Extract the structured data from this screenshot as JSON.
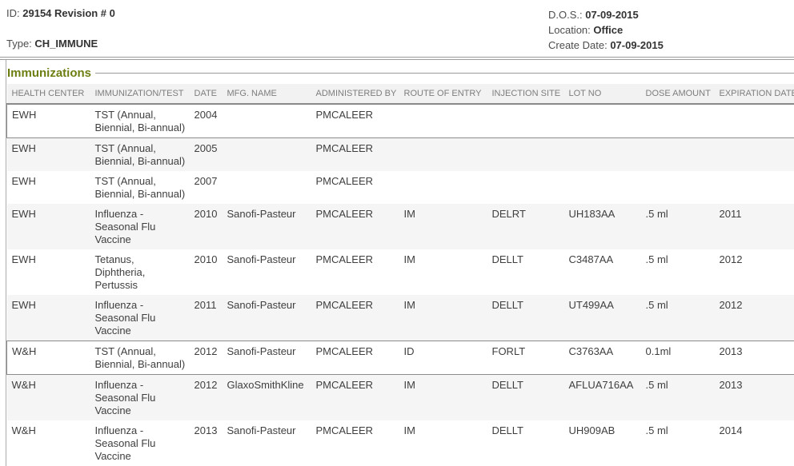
{
  "header": {
    "id_label": "ID:",
    "id_value": "29154 Revision # 0",
    "type_label": "Type:",
    "type_value": "CH_IMMUNE",
    "dos_label": "D.O.S.:",
    "dos_value": "07-09-2015",
    "location_label": "Location:",
    "location_value": "Office",
    "create_date_label": "Create Date:",
    "create_date_value": "07-09-2015"
  },
  "section": {
    "title": "Immunizations"
  },
  "table": {
    "columns": [
      "HEALTH CENTER",
      "IMMUNIZATION/TEST",
      "DATE",
      "MFG. NAME",
      "ADMINISTERED BY",
      "ROUTE OF ENTRY",
      "INJECTION SITE",
      "LOT NO",
      "DOSE AMOUNT",
      "EXPIRATION DATE"
    ],
    "rows": [
      {
        "outlined": true,
        "cells": [
          "EWH",
          "TST (Annual, Biennial, Bi-annual)",
          "2004",
          "",
          "PMCALEER",
          "",
          "",
          "",
          "",
          ""
        ]
      },
      {
        "outlined": false,
        "cells": [
          "EWH",
          "TST (Annual, Biennial, Bi-annual)",
          "2005",
          "",
          "PMCALEER",
          "",
          "",
          "",
          "",
          ""
        ]
      },
      {
        "outlined": false,
        "cells": [
          "EWH",
          "TST (Annual, Biennial, Bi-annual)",
          "2007",
          "",
          "PMCALEER",
          "",
          "",
          "",
          "",
          ""
        ]
      },
      {
        "outlined": false,
        "cells": [
          "EWH",
          "Influenza - Seasonal Flu Vaccine",
          "2010",
          "Sanofi-Pasteur",
          "PMCALEER",
          "IM",
          "DELRT",
          "UH183AA",
          ".5 ml",
          "2011"
        ]
      },
      {
        "outlined": false,
        "cells": [
          "EWH",
          "Tetanus, Diphtheria, Pertussis",
          "2010",
          "Sanofi-Pasteur",
          "PMCALEER",
          "IM",
          "DELLT",
          "C3487AA",
          ".5 ml",
          "2012"
        ]
      },
      {
        "outlined": false,
        "cells": [
          "EWH",
          "Influenza - Seasonal Flu Vaccine",
          "2011",
          "Sanofi-Pasteur",
          "PMCALEER",
          "IM",
          "DELLT",
          "UT499AA",
          ".5 ml",
          "2012"
        ]
      },
      {
        "outlined": true,
        "cells": [
          "W&H",
          "TST (Annual, Biennial, Bi-annual)",
          "2012",
          "Sanofi-Pasteur",
          "PMCALEER",
          "ID",
          "FORLT",
          "C3763AA",
          "0.1ml",
          "2013"
        ]
      },
      {
        "outlined": false,
        "cells": [
          "W&H",
          "Influenza - Seasonal Flu Vaccine",
          "2012",
          "GlaxoSmithKline",
          "PMCALEER",
          "IM",
          "DELLT",
          "AFLUA716AA",
          ".5 ml",
          "2013"
        ]
      },
      {
        "outlined": false,
        "cells": [
          "W&H",
          "Influenza - Seasonal Flu Vaccine",
          "2013",
          "Sanofi-Pasteur",
          "PMCALEER",
          "IM",
          "DELLT",
          "UH909AB",
          ".5 ml",
          "2014"
        ]
      }
    ]
  },
  "colors": {
    "section_title": "#6e7e12",
    "column_header_text": "#7d7d7d",
    "body_text": "#3f3f3f",
    "shaded_row_bg": "#f5f5f6",
    "row_outline": "#8c8c8c",
    "divider": "#9b9b9b"
  }
}
